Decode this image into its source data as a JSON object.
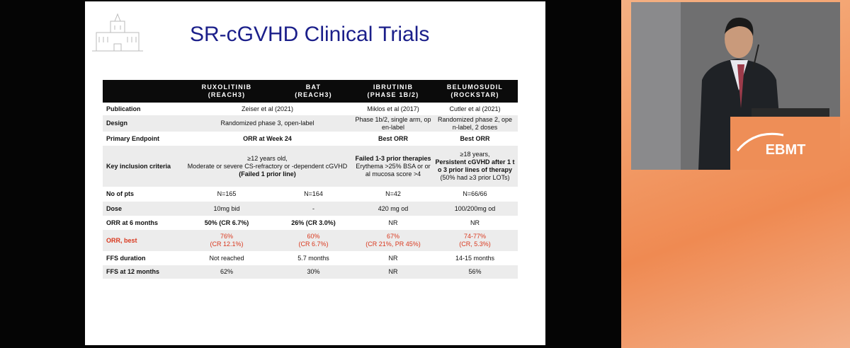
{
  "slide": {
    "title": "SR-cGVHD Clinical Trials"
  },
  "table": {
    "header": [
      [
        "RUXOLITINIB",
        "(REACH3)"
      ],
      [
        "BAT",
        "(REACH3)"
      ],
      [
        "IBRUTINIB",
        "(PHASE 1B/2)"
      ],
      [
        "BELUMOSUDIL",
        "(ROCKSTAR)"
      ]
    ],
    "rows": [
      {
        "label": "Publication",
        "cells": [
          [
            "Zeiser et al (2021)"
          ],
          null,
          [
            "Miklos et al (2017)"
          ],
          [
            "Cutler et al (2021)"
          ]
        ]
      },
      {
        "label": "Design",
        "cells": [
          [
            "Randomized phase 3, open-label"
          ],
          null,
          [
            "Phase 1b/2, single arm, op",
            "en-label"
          ],
          [
            "Randomized phase 2, ope",
            "n-label, 2 doses"
          ]
        ]
      },
      {
        "label": "Primary Endpoint",
        "cells": [
          [
            "ORR at Week 24"
          ],
          null,
          [
            "Best ORR"
          ],
          [
            "Best ORR"
          ]
        ]
      },
      {
        "label": "Key inclusion criteria",
        "cells": [
          [
            "≥12 years old,",
            "Moderate or severe CS-refractory or -dependent cGVHD",
            "(Failed 1 prior line)"
          ],
          null,
          [
            "Failed 1-3 prior therapies",
            "Erythema >25% BSA or or",
            "al mucosa score >4"
          ],
          [
            "≥18 years,",
            "Persistent cGVHD after 1 t",
            "o 3 prior lines of therapy",
            "(50% had ≥3 prior LOTs)"
          ]
        ]
      },
      {
        "label": "No of pts",
        "cells": [
          [
            "N=165"
          ],
          [
            "N=164"
          ],
          [
            "N=42"
          ],
          [
            "N=66/66"
          ]
        ]
      },
      {
        "label": "Dose",
        "cells": [
          [
            "10mg bid"
          ],
          [
            "-"
          ],
          [
            "420 mg od"
          ],
          [
            "100/200mg od"
          ]
        ]
      },
      {
        "label": "ORR at 6 months",
        "cells": [
          [
            "50% (CR 6.7%)"
          ],
          [
            "26% (CR 3.0%)"
          ],
          [
            "NR"
          ],
          [
            "NR"
          ]
        ]
      },
      {
        "label": "ORR, best",
        "cells": [
          [
            "76%",
            "(CR 12.1%)"
          ],
          [
            "60%",
            "(CR 6.7%)"
          ],
          [
            "67%",
            "(CR 21%, PR 45%)"
          ],
          [
            "74-77%",
            "(CR, 5.3%)"
          ]
        ]
      },
      {
        "label": "FFS duration",
        "cells": [
          [
            "Not reached"
          ],
          [
            "5.7 months"
          ],
          [
            "NR"
          ],
          [
            "14-15 months"
          ]
        ]
      },
      {
        "label": "FFS at 12 months",
        "cells": [
          [
            "62%"
          ],
          [
            "30%"
          ],
          [
            "NR"
          ],
          [
            "56%"
          ]
        ]
      }
    ]
  },
  "video": {
    "logo_text": "EBMT"
  }
}
